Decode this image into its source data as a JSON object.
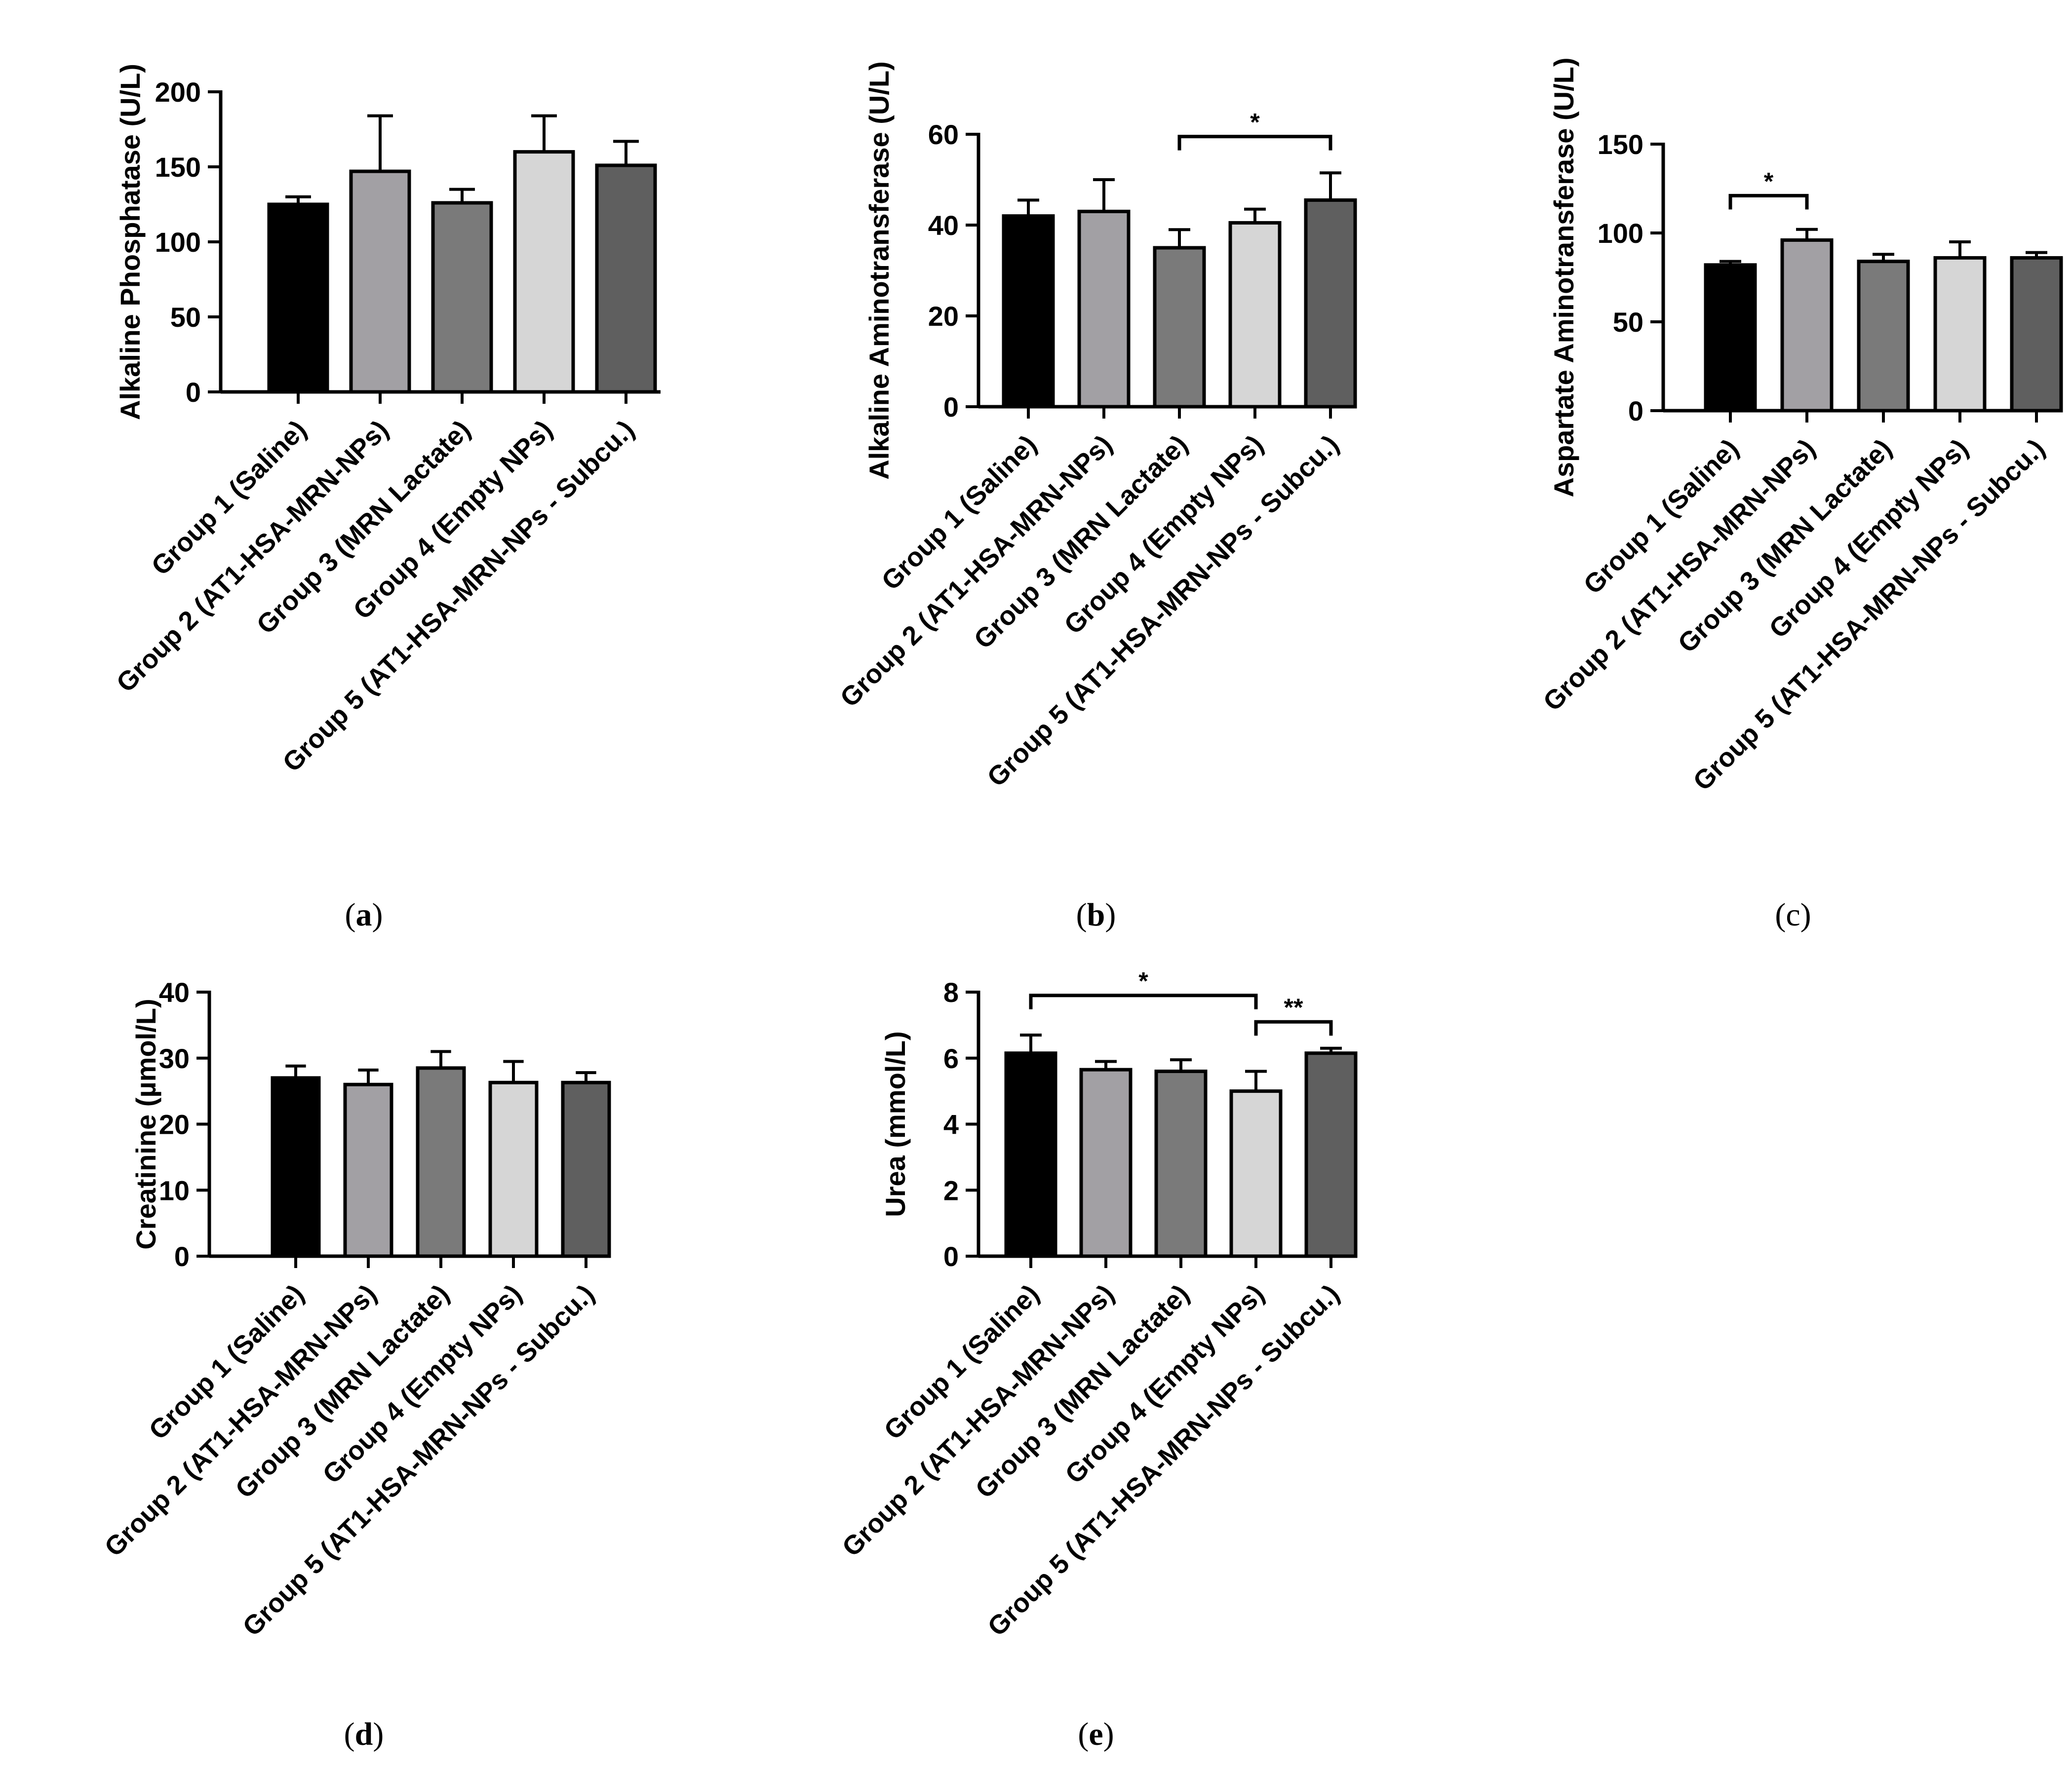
{
  "colors": {
    "group1": "#000000",
    "group2": "#a2a0a4",
    "group3": "#7a7a7a",
    "group4": "#d6d6d6",
    "group5": "#5f5f5f"
  },
  "chart_data": [
    {
      "id": "a",
      "caption": "a",
      "caption_bold": true,
      "type": "bar",
      "ylabel": "Alkaline Phosphatase (U/L)",
      "ylim": [
        0,
        200
      ],
      "yticks": [
        0,
        50,
        100,
        150,
        200
      ],
      "categories": [
        "Group 1 (Saline)",
        "Group 2 (AT1-HSA-MRN-NPs)",
        "Group 3 (MRN Lactate)",
        "Group 4 (Empty NPs)",
        "Group 5 (AT1-HSA-MRN-NPs - Subcu.)"
      ],
      "values": [
        125,
        147,
        126,
        160,
        151
      ],
      "errors": [
        5,
        37,
        9,
        24,
        16
      ],
      "significance": []
    },
    {
      "id": "b",
      "caption": "b",
      "caption_bold": true,
      "type": "bar",
      "ylabel": "Alkaline Aminotransferase (U/L)",
      "ylim": [
        0,
        60
      ],
      "yticks": [
        0,
        20,
        40,
        60
      ],
      "categories": [
        "Group 1 (Saline)",
        "Group 2 (AT1-HSA-MRN-NPs)",
        "Group 3 (MRN Lactate)",
        "Group 4 (Empty NPs)",
        "Group 5 (AT1-HSA-MRN-NPs - Subcu.)"
      ],
      "values": [
        42,
        43,
        35,
        40.5,
        45.5
      ],
      "errors": [
        3.5,
        7,
        4,
        3,
        6
      ],
      "significance": [
        {
          "from": 2,
          "to": 4,
          "label": "*",
          "y": 59.5
        }
      ]
    },
    {
      "id": "c",
      "caption": "c",
      "caption_bold": false,
      "type": "bar",
      "ylabel": "Aspartate Aminotransferase (U/L)",
      "ylim": [
        0,
        150
      ],
      "yticks": [
        0,
        50,
        100,
        150
      ],
      "categories": [
        "Group 1 (Saline)",
        "Group 2 (AT1-HSA-MRN-NPs)",
        "Group 3 (MRN Lactate)",
        "Group 4 (Empty NPs)",
        "Group 5 (AT1-HSA-MRN-NPs - Subcu.)"
      ],
      "values": [
        82,
        96,
        84,
        86,
        86
      ],
      "errors": [
        2,
        6,
        4,
        9,
        3
      ],
      "significance": [
        {
          "from": 0,
          "to": 1,
          "label": "*",
          "y": 121
        }
      ]
    },
    {
      "id": "d",
      "caption": "d",
      "caption_bold": true,
      "type": "bar",
      "ylabel": "Creatinine (µmol/L)",
      "ylim": [
        0,
        40
      ],
      "yticks": [
        0,
        10,
        20,
        30,
        40
      ],
      "categories": [
        "Group 1 (Saline)",
        "Group 2 (AT1-HSA-MRN-NPs)",
        "Group 3 (MRN Lactate)",
        "Group 4 (Empty NPs)",
        "Group 5 (AT1-HSA-MRN-NPs - Subcu.)"
      ],
      "values": [
        27,
        26,
        28.5,
        26.3,
        26.3
      ],
      "errors": [
        1.8,
        2.2,
        2.5,
        3.2,
        1.5
      ],
      "significance": []
    },
    {
      "id": "e",
      "caption": "e",
      "caption_bold": true,
      "type": "bar",
      "ylabel": "Urea (mmol/L)",
      "ylim": [
        0,
        8
      ],
      "yticks": [
        0,
        2,
        4,
        6,
        8
      ],
      "categories": [
        "Group 1 (Saline)",
        "Group 2 (AT1-HSA-MRN-NPs)",
        "Group 3 (MRN Lactate)",
        "Group 4 (Empty NPs)",
        "Group 5 (AT1-HSA-MRN-NPs - Subcu.)"
      ],
      "values": [
        6.15,
        5.65,
        5.6,
        5.0,
        6.15
      ],
      "errors": [
        0.55,
        0.25,
        0.35,
        0.6,
        0.15
      ],
      "significance": [
        {
          "from": 0,
          "to": 3,
          "label": "*",
          "y": 7.9
        },
        {
          "from": 3,
          "to": 4,
          "label": "**",
          "y": 7.1
        }
      ]
    }
  ]
}
